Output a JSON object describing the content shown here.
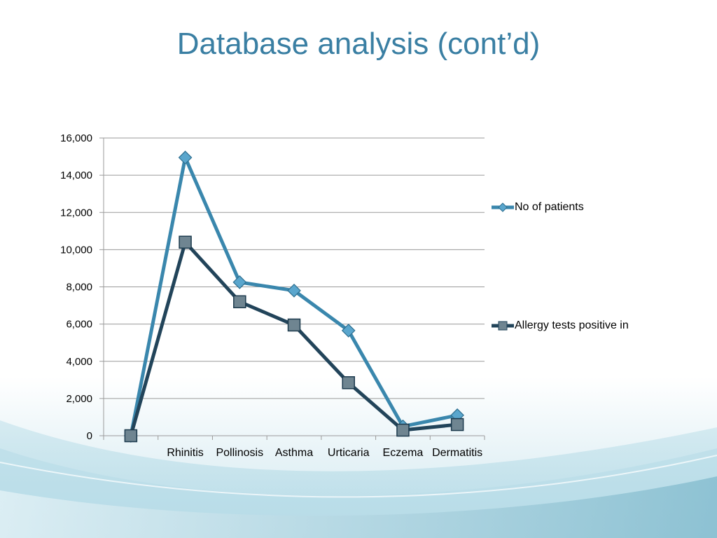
{
  "slide": {
    "title": "Database analysis (cont’d)"
  },
  "colors": {
    "series1": "#3a87ad",
    "series1_marker": "#5aa6cd",
    "series2": "#22445a",
    "series2_marker": "#6f8591",
    "grid": "#9a9a9a",
    "title": "#3a7fa3",
    "wave": "#7fbfd6"
  },
  "chart_data": {
    "type": "line",
    "title": "",
    "xlabel": "",
    "ylabel": "",
    "categories": [
      "",
      "Rhinitis",
      "Pollinosis",
      "Asthma",
      "Urticaria",
      "Eczema",
      "Dermatitis"
    ],
    "ylim": [
      0,
      16000
    ],
    "yticks": [
      "0",
      "2,000",
      "4,000",
      "6,000",
      "8,000",
      "10,000",
      "12,000",
      "14,000",
      "16,000"
    ],
    "grid": true,
    "legend_position": "right",
    "series": [
      {
        "name": "No of patients",
        "marker": "diamond",
        "values": [
          0,
          14950,
          8250,
          7800,
          5650,
          500,
          1100
        ]
      },
      {
        "name": "Allergy tests positive in",
        "marker": "square",
        "values": [
          0,
          10400,
          7200,
          5950,
          2850,
          300,
          600
        ]
      }
    ]
  }
}
